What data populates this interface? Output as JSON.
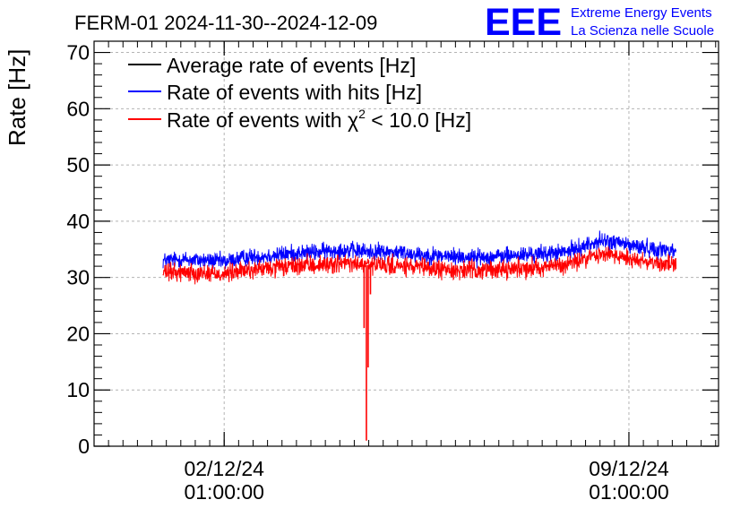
{
  "header": {
    "title": "FERM-01 2024-11-30--2024-12-09",
    "logo_text": "EEE",
    "logo_line1": "Extreme Energy Events",
    "logo_line2": "La Scienza nelle Scuole"
  },
  "colors": {
    "average": "#000000",
    "hits": "#0000ff",
    "chi2": "#ff0000",
    "logo": "#0000ff",
    "grid": "#b4b4b4"
  },
  "chart_data": {
    "type": "line",
    "title": "FERM-01 2024-11-30--2024-12-09",
    "ylabel": "Rate [Hz]",
    "xlabel": "",
    "ylim": [
      0,
      72
    ],
    "xlim_days": [
      -1.25,
      9.55
    ],
    "x_unit": "days since 2024-12-01 01:00:00",
    "yticks": [
      0,
      10,
      20,
      30,
      40,
      50,
      60,
      70
    ],
    "xticks": [
      {
        "day": 1,
        "date": "02/12/24",
        "time": "01:00:00"
      },
      {
        "day": 8,
        "date": "09/12/24",
        "time": "01:00:00"
      }
    ],
    "grid": true,
    "legend_position": "top-left",
    "legend": [
      {
        "key": "average",
        "label": "Average rate of events [Hz]"
      },
      {
        "key": "hits",
        "label": "Rate of events with hits [Hz]"
      },
      {
        "key": "chi2",
        "label_prefix": "Rate of events with ",
        "label_symbol": "χ",
        "label_sup": "2",
        "label_suffix": " < 10.0 [Hz]"
      }
    ],
    "series": [
      {
        "name": "Rate of events with hits [Hz]",
        "color": "#0000ff",
        "noise": 1.1,
        "x": [
          -0.05,
          0.3,
          0.7,
          1.0,
          1.4,
          1.8,
          2.2,
          2.6,
          3.0,
          3.5,
          4.0,
          4.5,
          5.0,
          5.5,
          6.0,
          6.5,
          6.9,
          7.2,
          7.5,
          7.8,
          8.1,
          8.5,
          8.8
        ],
        "values": [
          33.0,
          33.2,
          33.0,
          32.8,
          33.6,
          33.9,
          34.3,
          34.5,
          34.9,
          34.6,
          34.5,
          34.0,
          33.7,
          33.6,
          33.9,
          34.2,
          34.5,
          35.5,
          36.5,
          36.2,
          35.5,
          35.0,
          34.8
        ]
      },
      {
        "name": "Rate of events with χ2 < 10.0 [Hz]",
        "color": "#ff0000",
        "noise": 1.2,
        "x": [
          -0.05,
          0.3,
          0.7,
          1.0,
          1.4,
          1.8,
          2.2,
          2.6,
          3.0,
          3.5,
          4.0,
          4.5,
          5.0,
          5.5,
          6.0,
          6.5,
          6.9,
          7.2,
          7.5,
          7.8,
          8.1,
          8.5,
          8.8
        ],
        "values": [
          30.8,
          31.0,
          30.8,
          30.6,
          31.3,
          31.6,
          32.0,
          32.2,
          32.5,
          32.2,
          32.0,
          31.6,
          31.3,
          31.3,
          31.6,
          31.9,
          32.2,
          33.2,
          34.2,
          33.9,
          33.2,
          32.6,
          32.3
        ],
        "dips": [
          {
            "day": 3.42,
            "value": 21
          },
          {
            "day": 3.46,
            "value": 1
          },
          {
            "day": 3.49,
            "value": 14
          },
          {
            "day": 3.53,
            "value": 27
          }
        ]
      }
    ]
  }
}
